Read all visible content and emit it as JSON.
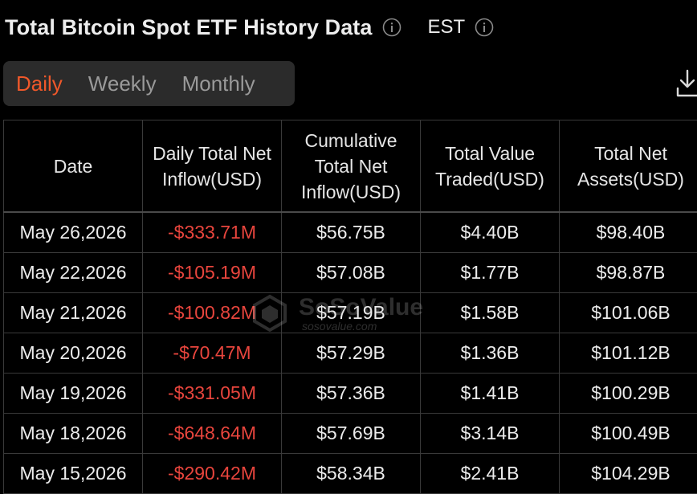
{
  "header": {
    "title": "Total Bitcoin Spot ETF History Data",
    "timezone": "EST"
  },
  "tabs": [
    {
      "label": "Daily",
      "active": true
    },
    {
      "label": "Weekly",
      "active": false
    },
    {
      "label": "Monthly",
      "active": false
    }
  ],
  "table": {
    "headers": [
      "Date",
      "Daily Total Net Inflow(USD)",
      "Cumulative Total Net Inflow(USD)",
      "Total Value Traded(USD)",
      "Total Net Assets(USD)"
    ],
    "rows": [
      [
        "May 26,2026",
        "-$333.71M",
        "$56.75B",
        "$4.40B",
        "$98.40B"
      ],
      [
        "May 22,2026",
        "-$105.19M",
        "$57.08B",
        "$1.77B",
        "$98.87B"
      ],
      [
        "May 21,2026",
        "-$100.82M",
        "$57.19B",
        "$1.58B",
        "$101.06B"
      ],
      [
        "May 20,2026",
        "-$70.47M",
        "$57.29B",
        "$1.36B",
        "$101.12B"
      ],
      [
        "May 19,2026",
        "-$331.05M",
        "$57.36B",
        "$1.41B",
        "$100.29B"
      ],
      [
        "May 18,2026",
        "-$648.64M",
        "$57.69B",
        "$3.14B",
        "$100.49B"
      ],
      [
        "May 15,2026",
        "-$290.42M",
        "$58.34B",
        "$2.41B",
        "$104.29B"
      ]
    ]
  },
  "watermark": {
    "name": "SoSoValue",
    "url": "sosovalue.com"
  },
  "colors": {
    "accent": "#f0582a",
    "negative": "#e8453d",
    "background": "#000000",
    "tab_bg": "#2b2b2b"
  },
  "icons": {
    "info": "info-icon",
    "download": "download-icon"
  }
}
